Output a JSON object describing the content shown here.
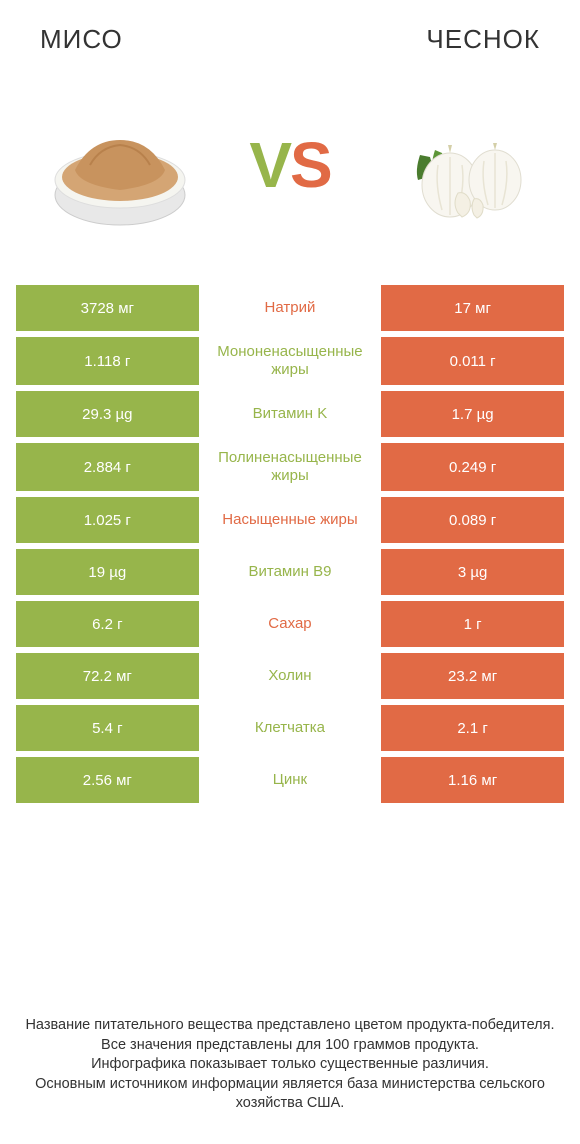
{
  "colors": {
    "left_bg": "#97b54b",
    "right_bg": "#e16a45",
    "text": "#333333",
    "white": "#ffffff"
  },
  "header": {
    "left_title": "Мисо",
    "right_title": "Чеснок",
    "vs_v": "V",
    "vs_s": "S"
  },
  "comparison": {
    "type": "table",
    "rows": [
      {
        "left": "3728 мг",
        "label": "Натрий",
        "right": "17 мг",
        "winner": "right"
      },
      {
        "left": "1.118 г",
        "label": "Мононенасыщенные жиры",
        "right": "0.011 г",
        "winner": "left"
      },
      {
        "left": "29.3 µg",
        "label": "Витамин K",
        "right": "1.7 µg",
        "winner": "left"
      },
      {
        "left": "2.884 г",
        "label": "Полиненасыщенные жиры",
        "right": "0.249 г",
        "winner": "left"
      },
      {
        "left": "1.025 г",
        "label": "Насыщенные жиры",
        "right": "0.089 г",
        "winner": "right"
      },
      {
        "left": "19 µg",
        "label": "Витамин B9",
        "right": "3 µg",
        "winner": "left"
      },
      {
        "left": "6.2 г",
        "label": "Сахар",
        "right": "1 г",
        "winner": "right"
      },
      {
        "left": "72.2 мг",
        "label": "Холин",
        "right": "23.2 мг",
        "winner": "left"
      },
      {
        "left": "5.4 г",
        "label": "Клетчатка",
        "right": "2.1 г",
        "winner": "left"
      },
      {
        "left": "2.56 мг",
        "label": "Цинк",
        "right": "1.16 мг",
        "winner": "left"
      }
    ]
  },
  "footer": {
    "line1": "Название питательного вещества представлено цветом продукта-победителя.",
    "line2": "Все значения представлены для 100 граммов продукта.",
    "line3": "Инфографика показывает только существенные различия.",
    "line4": "Основным источником информации является база министерства сельского хозяйства США."
  }
}
